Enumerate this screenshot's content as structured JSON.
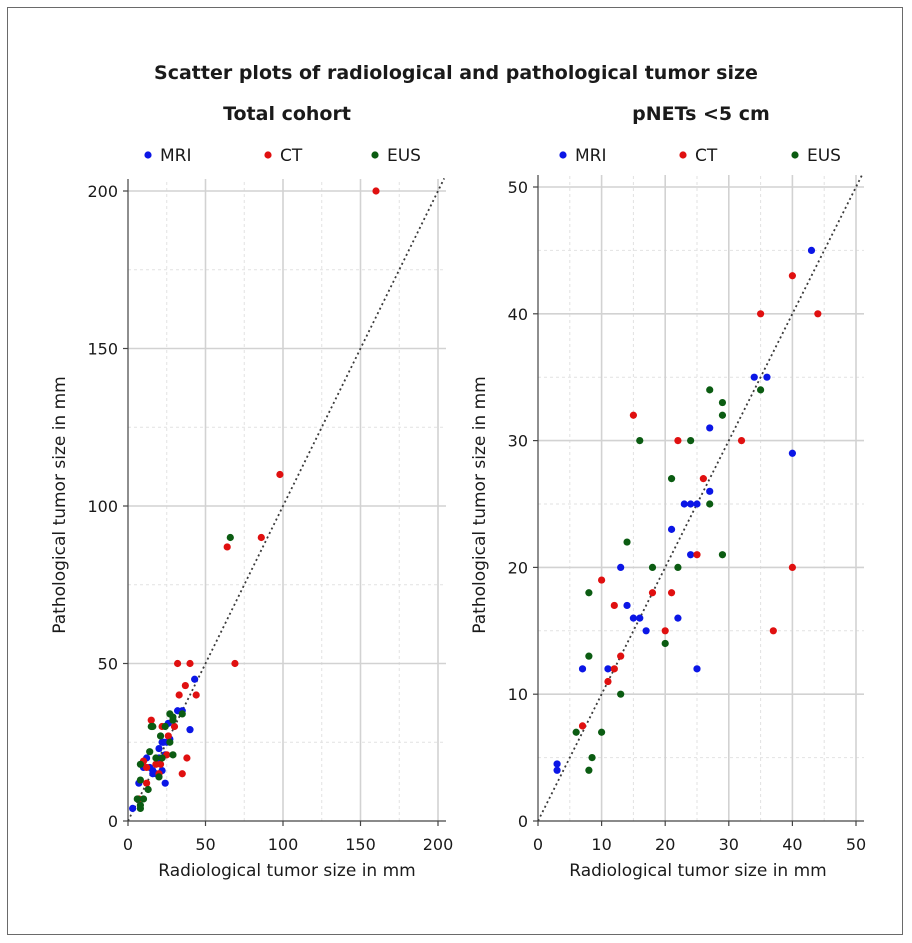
{
  "figure": {
    "title": "Scatter plots of radiological and pathological tumor size"
  },
  "colors": {
    "MRI": "#0b16e6",
    "CT": "#e01010",
    "EUS": "#0b5c12",
    "grid_major": "#d2d2d2",
    "grid_minor": "#e2e2e2",
    "diagonal": "#3a3a3a"
  },
  "chart_data": [
    {
      "type": "scatter",
      "title": "Total cohort",
      "xlabel": "Radiological tumor size in mm",
      "ylabel": "Pathological tumor size in mm",
      "xlim": [
        0,
        200
      ],
      "ylim": [
        0,
        200
      ],
      "xticks": [
        "0",
        "50",
        "100",
        "150",
        "200"
      ],
      "yticks": [
        "0",
        "50",
        "100",
        "150",
        "200"
      ],
      "tick_values": [
        0,
        50,
        100,
        150,
        200
      ],
      "reference_line": "y = x",
      "grid": true,
      "legend_position": "top",
      "legend": [
        "MRI",
        "CT",
        "EUS"
      ],
      "series": [
        {
          "name": "MRI",
          "points": [
            [
              3,
              4
            ],
            [
              7,
              12
            ],
            [
              10,
              17
            ],
            [
              12,
              20
            ],
            [
              14,
              17
            ],
            [
              16,
              16
            ],
            [
              16,
              15
            ],
            [
              18,
              15
            ],
            [
              20,
              23
            ],
            [
              20,
              20
            ],
            [
              22,
              25
            ],
            [
              22,
              16
            ],
            [
              24,
              12
            ],
            [
              24,
              21
            ],
            [
              26,
              31
            ],
            [
              27,
              26
            ],
            [
              32,
              35
            ],
            [
              35,
              35
            ],
            [
              40,
              29
            ],
            [
              43,
              45
            ],
            [
              25,
              25
            ],
            [
              23,
              25
            ]
          ]
        },
        {
          "name": "CT",
          "points": [
            [
              7,
              7
            ],
            [
              10,
              19
            ],
            [
              12,
              17
            ],
            [
              12,
              12
            ],
            [
              15,
              32
            ],
            [
              18,
              18
            ],
            [
              20,
              15
            ],
            [
              21,
              18
            ],
            [
              22,
              30
            ],
            [
              25,
              21
            ],
            [
              26,
              27
            ],
            [
              30,
              30
            ],
            [
              32,
              50
            ],
            [
              33,
              40
            ],
            [
              35,
              15
            ],
            [
              37,
              43
            ],
            [
              38,
              20
            ],
            [
              40,
              50
            ],
            [
              44,
              40
            ],
            [
              64,
              87
            ],
            [
              69,
              50
            ],
            [
              86,
              90
            ],
            [
              98,
              110
            ],
            [
              160,
              200
            ]
          ]
        },
        {
          "name": "EUS",
          "points": [
            [
              6,
              7
            ],
            [
              8,
              4
            ],
            [
              8,
              5
            ],
            [
              8,
              13
            ],
            [
              8,
              18
            ],
            [
              10,
              7
            ],
            [
              13,
              10
            ],
            [
              14,
              22
            ],
            [
              15,
              30
            ],
            [
              16,
              30
            ],
            [
              18,
              20
            ],
            [
              20,
              14
            ],
            [
              21,
              27
            ],
            [
              22,
              20
            ],
            [
              24,
              30
            ],
            [
              27,
              25
            ],
            [
              27,
              34
            ],
            [
              29,
              21
            ],
            [
              29,
              32
            ],
            [
              29,
              33
            ],
            [
              35,
              34
            ],
            [
              66,
              90
            ]
          ]
        }
      ]
    },
    {
      "type": "scatter",
      "title": "pNETs <5 cm",
      "xlabel": "Radiological tumor size in mm",
      "ylabel": "Pathological tumor size in mm",
      "xlim": [
        0,
        50
      ],
      "ylim": [
        0,
        50
      ],
      "xticks": [
        "0",
        "10",
        "20",
        "30",
        "40",
        "50"
      ],
      "yticks": [
        "0",
        "10",
        "20",
        "30",
        "40",
        "50"
      ],
      "tick_values": [
        0,
        10,
        20,
        30,
        40,
        50
      ],
      "reference_line": "y = x",
      "grid": true,
      "legend_position": "top",
      "legend": [
        "MRI",
        "CT",
        "EUS"
      ],
      "series": [
        {
          "name": "MRI",
          "points": [
            [
              3,
              4
            ],
            [
              3,
              4.5
            ],
            [
              7,
              12
            ],
            [
              11,
              12
            ],
            [
              13,
              20
            ],
            [
              14,
              17
            ],
            [
              15,
              16
            ],
            [
              16,
              16
            ],
            [
              17,
              15
            ],
            [
              21,
              23
            ],
            [
              22,
              16
            ],
            [
              23,
              25
            ],
            [
              24,
              25
            ],
            [
              25,
              25
            ],
            [
              24,
              21
            ],
            [
              25,
              12
            ],
            [
              27,
              31
            ],
            [
              27,
              26
            ],
            [
              34,
              35
            ],
            [
              36,
              35
            ],
            [
              40,
              29
            ],
            [
              43,
              45
            ]
          ]
        },
        {
          "name": "CT",
          "points": [
            [
              7,
              7.5
            ],
            [
              10,
              19
            ],
            [
              11,
              11
            ],
            [
              12,
              17
            ],
            [
              12,
              12
            ],
            [
              13,
              13
            ],
            [
              15,
              32
            ],
            [
              18,
              18
            ],
            [
              20,
              15
            ],
            [
              21,
              18
            ],
            [
              22,
              30
            ],
            [
              25,
              21
            ],
            [
              26,
              27
            ],
            [
              32,
              30
            ],
            [
              35,
              40
            ],
            [
              37,
              15
            ],
            [
              40,
              43
            ],
            [
              40,
              20
            ],
            [
              44,
              40
            ]
          ]
        },
        {
          "name": "EUS",
          "points": [
            [
              6,
              7
            ],
            [
              8,
              4
            ],
            [
              8.5,
              5
            ],
            [
              8,
              13
            ],
            [
              8,
              18
            ],
            [
              10,
              7
            ],
            [
              13,
              10
            ],
            [
              14,
              22
            ],
            [
              16,
              30
            ],
            [
              18,
              20
            ],
            [
              20,
              14
            ],
            [
              21,
              27
            ],
            [
              22,
              20
            ],
            [
              24,
              30
            ],
            [
              27,
              25
            ],
            [
              27,
              34
            ],
            [
              29,
              21
            ],
            [
              29,
              32
            ],
            [
              29,
              33
            ],
            [
              35,
              34
            ]
          ]
        }
      ]
    }
  ]
}
